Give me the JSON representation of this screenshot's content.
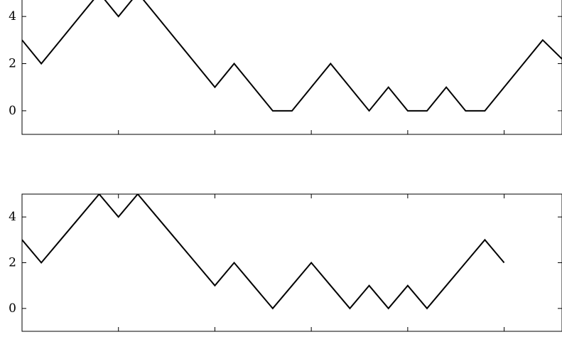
{
  "chart_data": [
    {
      "type": "line",
      "title": "",
      "xlabel": "",
      "ylabel": "",
      "xlim": [
        0,
        28
      ],
      "ylim": [
        -1,
        5
      ],
      "yticks": [
        0,
        2,
        4
      ],
      "ytick_labels": [
        "0",
        "2",
        "4"
      ],
      "xticks": [
        5,
        10,
        15,
        20,
        25
      ],
      "grid": false,
      "series": [
        {
          "x": [
            0,
            1,
            2,
            3,
            4,
            5,
            6,
            7,
            8,
            9,
            10,
            11,
            12,
            13,
            14,
            15,
            16,
            17,
            18,
            19,
            20,
            21,
            22,
            23,
            24,
            25,
            26,
            27,
            28
          ],
          "values": [
            3,
            2,
            3,
            4,
            5,
            4,
            5,
            4,
            3,
            2,
            1,
            2,
            1,
            0,
            0,
            1,
            2,
            1,
            0,
            1,
            0,
            0,
            1,
            0,
            0,
            1,
            2,
            3,
            2.2
          ]
        }
      ]
    },
    {
      "type": "line",
      "title": "",
      "xlabel": "",
      "ylabel": "",
      "xlim": [
        0,
        28
      ],
      "ylim": [
        -1,
        5
      ],
      "yticks": [
        0,
        2,
        4
      ],
      "ytick_labels": [
        "0",
        "2",
        "4"
      ],
      "xticks": [
        5,
        10,
        15,
        20,
        25
      ],
      "grid": false,
      "series": [
        {
          "x": [
            0,
            1,
            2,
            3,
            4,
            5,
            6,
            7,
            8,
            9,
            10,
            11,
            12,
            13,
            14,
            15,
            16,
            17,
            18,
            19,
            20,
            21,
            22,
            23,
            24,
            25
          ],
          "values": [
            3,
            2,
            3,
            4,
            5,
            4,
            5,
            4,
            3,
            2,
            1,
            2,
            1,
            0,
            1,
            2,
            1,
            0,
            1,
            0,
            1,
            0,
            1,
            2,
            3,
            2
          ]
        }
      ]
    }
  ]
}
